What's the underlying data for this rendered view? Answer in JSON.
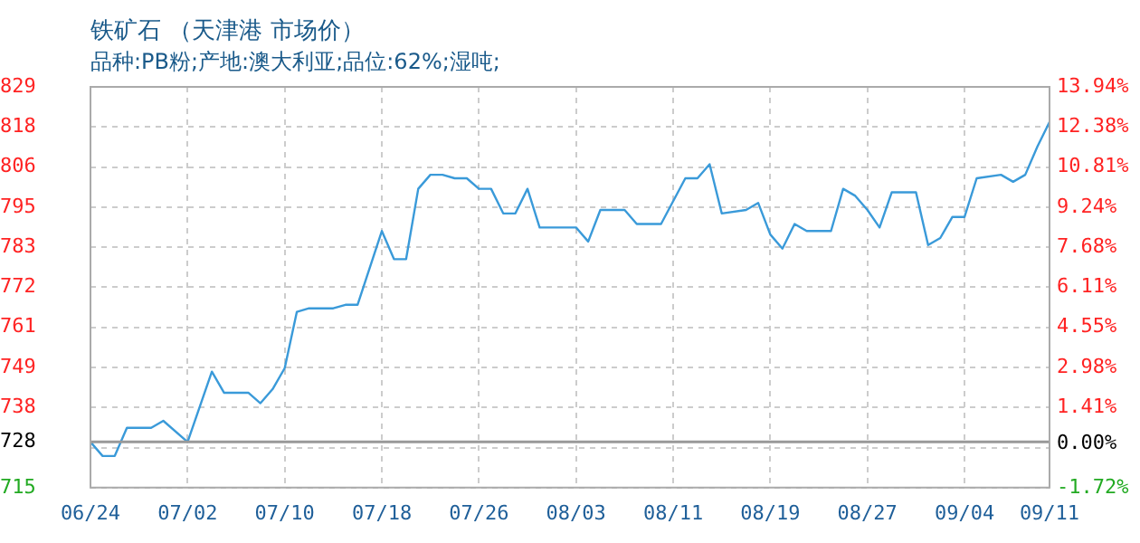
{
  "chart_data": {
    "type": "line",
    "title": "铁矿石 （天津港 市场价）",
    "subtitle": "品种:PB粉;产地:澳大利亚;品位:62%;湿吨;",
    "x": [
      "--06-24",
      "--06-25",
      "--06-26",
      "--06-27",
      "--06-29",
      "--06-30",
      "--07-02",
      "--07-04",
      "--07-05",
      "--07-07",
      "--07-08",
      "--07-09",
      "--07-10",
      "--07-11",
      "--07-12",
      "--07-14",
      "--07-15",
      "--07-16",
      "--07-18",
      "--07-19",
      "--07-20",
      "--07-21",
      "--07-22",
      "--07-23",
      "--07-24",
      "--07-25",
      "--07-26",
      "--07-27",
      "--07-28",
      "--07-29",
      "--07-30",
      "--07-31",
      "--08-03",
      "--08-04",
      "--08-05",
      "--08-07",
      "--08-08",
      "--08-10",
      "--08-12",
      "--08-13",
      "--08-14",
      "--08-15",
      "--08-17",
      "--08-18",
      "--08-19",
      "--08-20",
      "--08-21",
      "--08-22",
      "--08-24",
      "--08-25",
      "--08-26",
      "--08-27",
      "--08-28",
      "--08-29",
      "--08-31",
      "--09-01",
      "--09-02",
      "--09-03",
      "--09-04",
      "--09-05",
      "--09-07",
      "--09-08",
      "--09-09",
      "--09-10",
      "--09-11"
    ],
    "series": [
      {
        "color": "#3a9ad9",
        "values": [
          728,
          724,
          724,
          732,
          732,
          734,
          728,
          748,
          742,
          742,
          739,
          743,
          749,
          765,
          766,
          766,
          767,
          767,
          788,
          780,
          780,
          800,
          804,
          804,
          803,
          803,
          800,
          800,
          793,
          793,
          800,
          789,
          789,
          785,
          794,
          794,
          790,
          790,
          803,
          803,
          807,
          793,
          794,
          796,
          787,
          783,
          790,
          788,
          788,
          800,
          798,
          794,
          789,
          799,
          799,
          784,
          786,
          792,
          792,
          803,
          804,
          802,
          804,
          812,
          819
        ]
      }
    ],
    "xlim": [
      "--06-24",
      "--09-11"
    ],
    "xticks": [
      {
        "value": "--06-24",
        "label": "06/24"
      },
      {
        "value": "--07-02",
        "label": "07/02"
      },
      {
        "value": "--07-10",
        "label": "07/10"
      },
      {
        "value": "--07-18",
        "label": "07/18"
      },
      {
        "value": "--07-26",
        "label": "07/26"
      },
      {
        "value": "--08-03",
        "label": "08/03"
      },
      {
        "value": "--08-11",
        "label": "08/11"
      },
      {
        "value": "--08-19",
        "label": "08/19"
      },
      {
        "value": "--08-27",
        "label": "08/27"
      },
      {
        "value": "--09-04",
        "label": "09/04"
      },
      {
        "value": "--09-11",
        "label": "09/11"
      }
    ],
    "ylim": [
      715,
      829
    ],
    "yticks": [
      715,
      {
        "value": 726.4,
        "label": null
      },
      {
        "value": 737.8,
        "label": "738"
      },
      {
        "value": 749.2,
        "label": "749"
      },
      {
        "value": 760.6,
        "label": "761"
      },
      772,
      {
        "value": 783.4,
        "label": "783"
      },
      {
        "value": 794.8,
        "label": "795"
      },
      {
        "value": 806.2,
        "label": "806"
      },
      {
        "value": 817.6,
        "label": "818"
      },
      829
    ],
    "y2lim": [
      -1.72,
      13.94
    ],
    "y2ticks": [
      {
        "value": -1.72,
        "label": "-1.72%"
      },
      {
        "value": 0,
        "label": "0.00%"
      },
      {
        "value": 1.41,
        "label": "1.41%"
      },
      {
        "value": 2.98,
        "label": "2.98%"
      },
      {
        "value": 4.55,
        "label": "4.55%"
      },
      {
        "value": 6.11,
        "label": "6.11%"
      },
      {
        "value": 7.68,
        "label": "7.68%"
      },
      {
        "value": 9.24,
        "label": "9.24%"
      },
      {
        "value": 10.81,
        "label": "10.81%"
      },
      {
        "value": 12.38,
        "label": "12.38%"
      },
      {
        "value": 13.94,
        "label": "13.94%"
      }
    ],
    "ref_lines": [
      {
        "axis": "y",
        "value": 728,
        "label": "728",
        "color": "#999999",
        "line_style": "solid"
      }
    ],
    "grid": true,
    "marker": "none",
    "line_style": "solid",
    "legend": false
  }
}
